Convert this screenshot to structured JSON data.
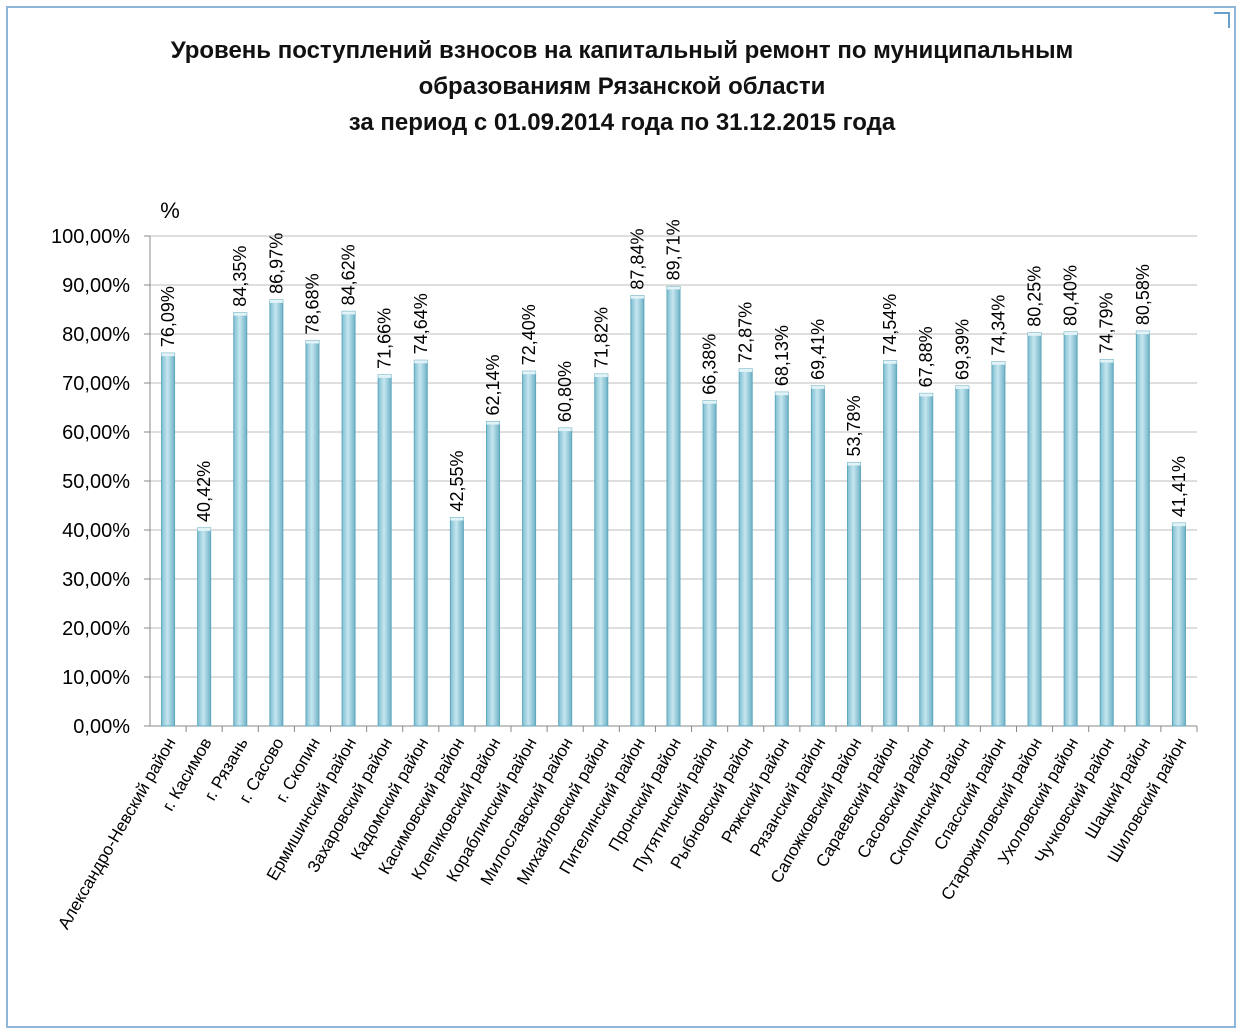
{
  "chart_data": {
    "type": "bar",
    "title_lines": [
      "Уровень поступлений взносов на капитальный ремонт по муниципальным",
      "образованиям Рязанской области",
      "за период с 01.09.2014 года по 31.12.2015 года"
    ],
    "ylabel": "%",
    "ylim": [
      0,
      100
    ],
    "yticks": [
      "0,00%",
      "10,00%",
      "20,00%",
      "30,00%",
      "40,00%",
      "50,00%",
      "60,00%",
      "70,00%",
      "80,00%",
      "90,00%",
      "100,00%"
    ],
    "grid": true,
    "categories": [
      "Александро-Невский район",
      "г. Касимов",
      "г. Рязань",
      "г. Сасово",
      "г. Скопин",
      "Ермишинский район",
      "Захаровский район",
      "Кадомский район",
      "Касимовский район",
      "Клепиковский район",
      "Кораблинский район",
      "Милославский район",
      "Михайловский район",
      "Пителинский район",
      "Пронский район",
      "Путятинский район",
      "Рыбновский район",
      "Ряжский район",
      "Рязанский район",
      "Сапожковский район",
      "Сараевский район",
      "Сасовский район",
      "Скопинский район",
      "Спасский район",
      "Старожиловский район",
      "Ухоловский район",
      "Чучковский район",
      "Шацкий район",
      "Шиловский район"
    ],
    "values": [
      76.09,
      40.42,
      84.35,
      86.97,
      78.68,
      84.62,
      71.66,
      74.64,
      42.55,
      62.14,
      72.4,
      60.8,
      71.82,
      87.84,
      89.71,
      66.38,
      72.87,
      68.13,
      69.41,
      53.78,
      74.54,
      67.88,
      69.39,
      74.34,
      80.25,
      80.4,
      74.79,
      80.58,
      41.41
    ],
    "data_labels": [
      "76,09%",
      "40,42%",
      "84,35%",
      "86,97%",
      "78,68%",
      "84,62%",
      "71,66%",
      "74,64%",
      "42,55%",
      "62,14%",
      "72,40%",
      "60,80%",
      "71,82%",
      "87,84%",
      "89,71%",
      "66,38%",
      "72,87%",
      "68,13%",
      "69,41%",
      "53,78%",
      "74,54%",
      "67,88%",
      "69,39%",
      "74,34%",
      "80,25%",
      "80,40%",
      "74,79%",
      "80,58%",
      "41,41%"
    ],
    "colors": {
      "bar": "#9dd0de",
      "bar_edge": "#5fa8bc",
      "bar_top": "#c6e6ef",
      "grid": "#bdbdbd",
      "frame": "#8fb6d8"
    }
  }
}
